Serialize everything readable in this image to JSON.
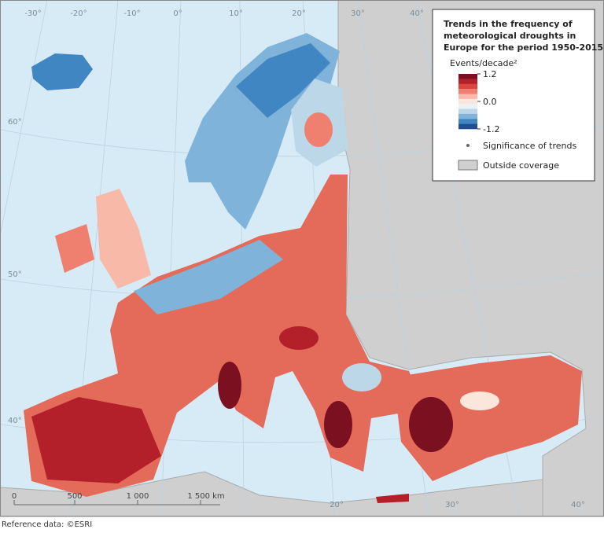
{
  "legend": {
    "title": "Trends in the frequency of meteorological droughts in Europe for the period 1950-2015",
    "title_lines": [
      "Trends in the frequency of",
      "meteorological droughts in",
      "Europe for the period 1950-2015"
    ],
    "unit": "Events/decade²",
    "colors": [
      "#7a1020",
      "#b3202a",
      "#d9463f",
      "#ef7f6f",
      "#f8b9a8",
      "#fbe6dc",
      "#eaf2f5",
      "#bcd7e8",
      "#7fb3d9",
      "#3f86c2",
      "#1f4f93"
    ],
    "ticks": [
      {
        "value": 1.2,
        "label": "1.2"
      },
      {
        "value": 0.0,
        "label": "0.0"
      },
      {
        "value": -1.2,
        "label": "-1.2"
      }
    ],
    "significance": "Significance of trends",
    "outside": "Outside coverage"
  },
  "graticule": {
    "top": [
      "-30°",
      "-20°",
      "-10°",
      "0°",
      "10°",
      "20°",
      "30°",
      "40°"
    ],
    "left": [
      "60°",
      "50°",
      "40°"
    ],
    "bottom": [
      "20°",
      "30°",
      "40°"
    ]
  },
  "scale_bar": {
    "labels": [
      "0",
      "500",
      "1 000",
      "1 500 km"
    ]
  },
  "source": "Reference data: ©ESRI"
}
